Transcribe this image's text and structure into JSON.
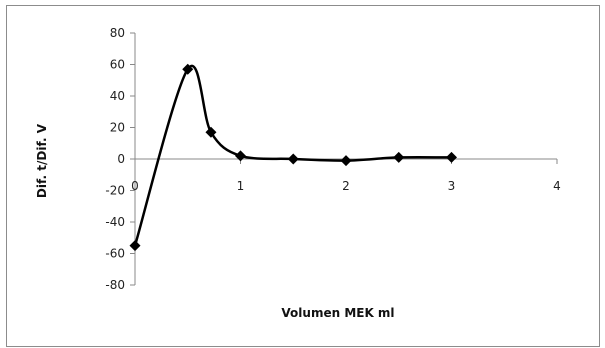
{
  "chart_data": {
    "type": "line",
    "title": "",
    "xlabel": "Volumen MEK ml",
    "ylabel": "Dif. t/Dif. V",
    "xlim": [
      0,
      4
    ],
    "ylim": [
      -80,
      80
    ],
    "x_ticks": [
      0,
      1,
      2,
      3,
      4
    ],
    "y_ticks": [
      80,
      60,
      40,
      20,
      0,
      -20,
      -40,
      -60,
      -80
    ],
    "grid": false,
    "legend": "none",
    "series": [
      {
        "marker": "diamond",
        "smooth": true,
        "color": "#000000",
        "points": [
          {
            "x": 0.0,
            "y": -55
          },
          {
            "x": 0.5,
            "y": 57
          },
          {
            "x": 0.72,
            "y": 17
          },
          {
            "x": 1.0,
            "y": 2
          },
          {
            "x": 1.5,
            "y": 0
          },
          {
            "x": 2.0,
            "y": -1
          },
          {
            "x": 2.5,
            "y": 1
          },
          {
            "x": 3.0,
            "y": 1
          }
        ]
      }
    ]
  }
}
